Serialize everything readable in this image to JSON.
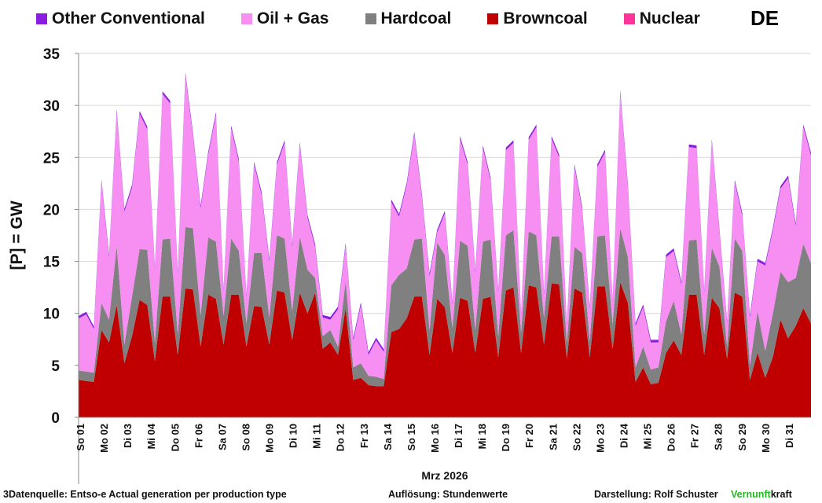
{
  "header": {
    "country": "DE"
  },
  "footer": {
    "source": "3Datenquelle: Entso-e  Actual generation per production type",
    "resolution": "Auflösung: Stundenwerte",
    "author": "Darstellung:  Rolf Schuster",
    "brand_green": "Vernunft",
    "brand_rest": "kraft"
  },
  "chart_data": {
    "type": "area",
    "stacked": true,
    "title": "",
    "ylabel": "[P] =  GW",
    "xlabel": "Mrz 2026",
    "ylim": [
      0,
      35
    ],
    "yticks": [
      0,
      5,
      10,
      15,
      20,
      25,
      30,
      35
    ],
    "grid": true,
    "legend_position": "top",
    "days": [
      "So 01",
      "Mo 02",
      "Di 03",
      "Mi 04",
      "Do 05",
      "Fr 06",
      "Sa 07",
      "So 08",
      "Mo 09",
      "Di 10",
      "Mi 11",
      "Do 12",
      "Fr 13",
      "Sa 14",
      "So 15",
      "Mo 16",
      "Di 17",
      "Mi 18",
      "Do 19",
      "Fr 20",
      "Sa 21",
      "So 22",
      "Mo 23",
      "Di 24",
      "Mi 25",
      "Do 26",
      "Fr 27",
      "Sa 28",
      "So 29",
      "Mo 30",
      "Di 31"
    ],
    "legend": [
      {
        "name": "Other Conventional",
        "color": "#8a1ee0"
      },
      {
        "name": "Oil + Gas",
        "color": "#f78ef2"
      },
      {
        "name": "Hardcoal",
        "color": "#808080"
      },
      {
        "name": "Browncoal",
        "color": "#c00000"
      },
      {
        "name": "Nuclear",
        "color": "#ff3399"
      }
    ],
    "series": [
      {
        "name": "Browncoal",
        "color": "#c00000",
        "unit": "GW",
        "resolution": "6h",
        "values": [
          3.6,
          3.5,
          3.4,
          8.4,
          7.2,
          10.8,
          5.2,
          7.8,
          11.3,
          10.8,
          5.4,
          11.6,
          11.6,
          6.0,
          12.4,
          12.3,
          6.8,
          11.8,
          11.4,
          7.0,
          11.8,
          11.8,
          6.8,
          10.7,
          10.6,
          7.0,
          12.2,
          12.0,
          7.4,
          12.0,
          10.0,
          12.0,
          6.6,
          7.2,
          6.0,
          10.5,
          3.6,
          3.8,
          3.1,
          3.0,
          3.0,
          8.2,
          8.5,
          9.5,
          11.6,
          11.6,
          6.0,
          11.4,
          10.6,
          6.2,
          11.5,
          11.2,
          6.2,
          11.4,
          11.6,
          5.8,
          12.2,
          12.5,
          6.2,
          12.7,
          12.5,
          7.0,
          12.9,
          12.8,
          5.6,
          12.4,
          12.0,
          5.8,
          12.6,
          12.6,
          6.6,
          13.0,
          11.0,
          3.4,
          4.8,
          3.2,
          3.3,
          6.2,
          7.4,
          6.0,
          11.8,
          11.8,
          6.0,
          11.5,
          10.5,
          5.6,
          12.0,
          11.6,
          3.6,
          6.2,
          3.8,
          5.8,
          9.4,
          7.6,
          8.8,
          10.5,
          9.0
        ]
      },
      {
        "name": "Nuclear",
        "color": "#ff3399",
        "unit": "GW",
        "resolution": "6h",
        "values": [
          0,
          0,
          0,
          0,
          0,
          0,
          0,
          0,
          0,
          0,
          0,
          0,
          0,
          0,
          0,
          0,
          0,
          0,
          0,
          0,
          0,
          0,
          0,
          0,
          0,
          0,
          0,
          0,
          0,
          0,
          0,
          0,
          0,
          0,
          0,
          0,
          0,
          0,
          0,
          0,
          0,
          0,
          0,
          0,
          0,
          0,
          0,
          0,
          0,
          0,
          0,
          0,
          0,
          0,
          0,
          0,
          0,
          0,
          0,
          0,
          0,
          0,
          0,
          0,
          0,
          0,
          0,
          0,
          0,
          0,
          0,
          0,
          0,
          0,
          0,
          0,
          0,
          0,
          0,
          0,
          0,
          0,
          0,
          0,
          0,
          0,
          0,
          0,
          0,
          0,
          0,
          0,
          0,
          0,
          0,
          0,
          0
        ]
      },
      {
        "name": "Hardcoal",
        "color": "#808080",
        "unit": "GW",
        "resolution": "6h",
        "values": [
          0.9,
          0.9,
          0.9,
          2.6,
          2.2,
          5.7,
          1.8,
          3.8,
          4.9,
          5.3,
          1.8,
          5.5,
          5.6,
          2.0,
          5.9,
          5.9,
          3.0,
          5.5,
          5.5,
          2.8,
          5.4,
          4.2,
          2.3,
          5.1,
          5.2,
          2.6,
          5.3,
          5.2,
          2.8,
          5.4,
          4.2,
          1.4,
          1.2,
          1.2,
          0.8,
          2.6,
          1.2,
          1.4,
          0.9,
          0.9,
          0.7,
          4.5,
          5.2,
          4.8,
          5.5,
          5.6,
          2.4,
          5.4,
          5.0,
          2.4,
          5.5,
          5.3,
          2.2,
          5.5,
          5.5,
          2.0,
          5.3,
          5.5,
          2.0,
          5.2,
          5.0,
          2.6,
          4.5,
          4.6,
          1.6,
          4.0,
          3.8,
          1.6,
          4.8,
          4.9,
          2.4,
          5.2,
          4.4,
          1.4,
          2.0,
          1.4,
          1.5,
          3.0,
          3.8,
          2.0,
          5.2,
          5.3,
          2.0,
          4.8,
          4.0,
          1.2,
          5.2,
          4.4,
          1.4,
          4.0,
          2.6,
          4.2,
          4.6,
          5.4,
          4.6,
          6.2,
          5.8
        ]
      },
      {
        "name": "Oil + Gas",
        "color": "#f78ef2",
        "unit": "GW",
        "resolution": "6h",
        "values": [
          5.0,
          5.5,
          4.2,
          11.6,
          6.0,
          12.9,
          12.8,
          10.5,
          13.0,
          11.6,
          7.0,
          14.0,
          13.0,
          5.8,
          14.6,
          8.9,
          10.3,
          8.0,
          12.2,
          2.3,
          10.6,
          8.6,
          2.4,
          8.5,
          5.6,
          5.4,
          6.8,
          9.2,
          6.2,
          8.8,
          5.0,
          3.0,
          1.8,
          1.0,
          3.6,
          3.4,
          2.6,
          5.6,
          2.0,
          3.5,
          2.6,
          8.0,
          5.6,
          8.0,
          10.1,
          4.0,
          5.2,
          1.0,
          4.0,
          2.2,
          9.8,
          7.8,
          5.5,
          9.0,
          5.7,
          4.2,
          8.2,
          8.4,
          1.6,
          8.8,
          10.4,
          2.2,
          9.4,
          7.6,
          1.5,
          7.7,
          4.2,
          3.0,
          6.7,
          8.0,
          2.0,
          13.0,
          6.8,
          4.0,
          3.8,
          2.6,
          2.4,
          6.2,
          4.8,
          4.8,
          9.0,
          8.8,
          4.0,
          10.2,
          3.4,
          2.2,
          5.4,
          3.4,
          4.6,
          4.8,
          8.2,
          8.0,
          8.0,
          10.0,
          5.0,
          11.2,
          10.4
        ]
      },
      {
        "name": "Other Conventional",
        "color": "#8a1ee0",
        "unit": "GW",
        "resolution": "6h",
        "values": [
          0.25,
          0.25,
          0.25,
          0.25,
          0.25,
          0.25,
          0.25,
          0.25,
          0.25,
          0.25,
          0.25,
          0.25,
          0.25,
          0.25,
          0.25,
          0.25,
          0.25,
          0.25,
          0.25,
          0.25,
          0.25,
          0.25,
          0.25,
          0.25,
          0.25,
          0.25,
          0.25,
          0.25,
          0.25,
          0.25,
          0.25,
          0.25,
          0.25,
          0.25,
          0.25,
          0.25,
          0.25,
          0.25,
          0.25,
          0.25,
          0.25,
          0.25,
          0.25,
          0.25,
          0.25,
          0.25,
          0.25,
          0.25,
          0.25,
          0.25,
          0.25,
          0.25,
          0.25,
          0.25,
          0.25,
          0.25,
          0.25,
          0.25,
          0.25,
          0.25,
          0.25,
          0.25,
          0.25,
          0.25,
          0.25,
          0.25,
          0.25,
          0.25,
          0.25,
          0.25,
          0.25,
          0.25,
          0.25,
          0.25,
          0.25,
          0.25,
          0.25,
          0.25,
          0.25,
          0.25,
          0.25,
          0.25,
          0.25,
          0.25,
          0.25,
          0.25,
          0.25,
          0.25,
          0.25,
          0.25,
          0.25,
          0.25,
          0.25,
          0.25,
          0.25,
          0.25,
          0.25
        ]
      }
    ]
  }
}
